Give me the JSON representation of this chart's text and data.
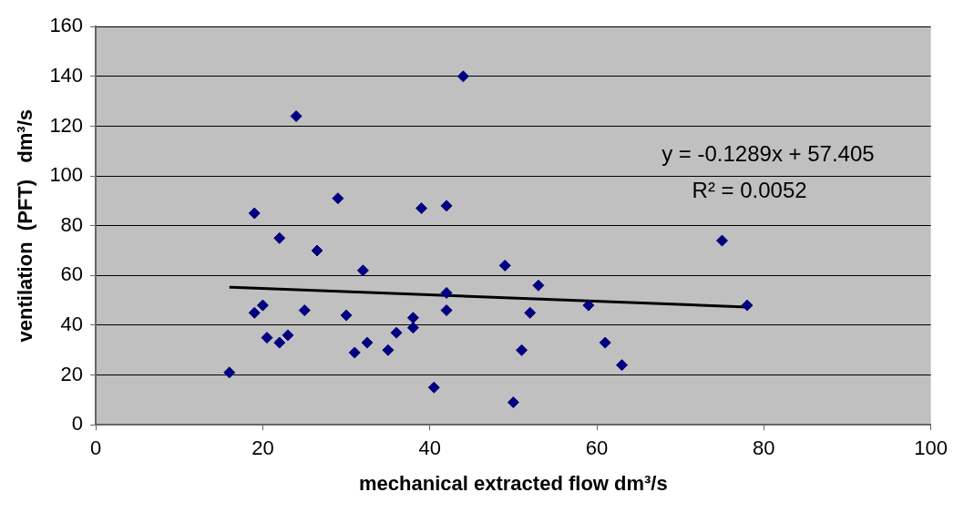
{
  "chart_data": {
    "type": "scatter",
    "xlabel": "mechanical extracted flow dm³/s",
    "ylabel": "ventilation  (PFT)   dm³/s",
    "xlim": [
      0,
      100
    ],
    "xticks": [
      0,
      20,
      40,
      60,
      80,
      100
    ],
    "ylim": [
      0,
      160
    ],
    "yticks": [
      0,
      20,
      40,
      60,
      80,
      100,
      120,
      140,
      160
    ],
    "grid": "y",
    "legend": false,
    "marker": "diamond",
    "series": [
      {
        "color": "#000080",
        "x": [
          16,
          19,
          19,
          20,
          20.5,
          22,
          22,
          23,
          24,
          25,
          26.5,
          29,
          30,
          31,
          32,
          32.5,
          35,
          36,
          38,
          38,
          39,
          40.5,
          42,
          42,
          42,
          44,
          49,
          50,
          51,
          52,
          53,
          59,
          61,
          63,
          75,
          78
        ],
        "values": [
          21,
          85,
          45,
          48,
          35,
          75,
          33,
          36,
          124,
          46,
          70,
          91,
          44,
          29,
          62,
          33,
          30,
          37,
          43,
          39,
          87,
          15,
          88,
          53,
          46,
          140,
          64,
          9,
          30,
          45,
          56,
          48,
          33,
          24,
          74,
          48
        ]
      },
      {
        "type": "line",
        "color": "#000000",
        "x": [
          16,
          78
        ],
        "values": [
          55.3,
          47.3
        ],
        "marker": "none",
        "line_style": "solid"
      }
    ],
    "annotations": [
      "y = -0.1289x + 57.405",
      "R² = 0.0052"
    ]
  }
}
